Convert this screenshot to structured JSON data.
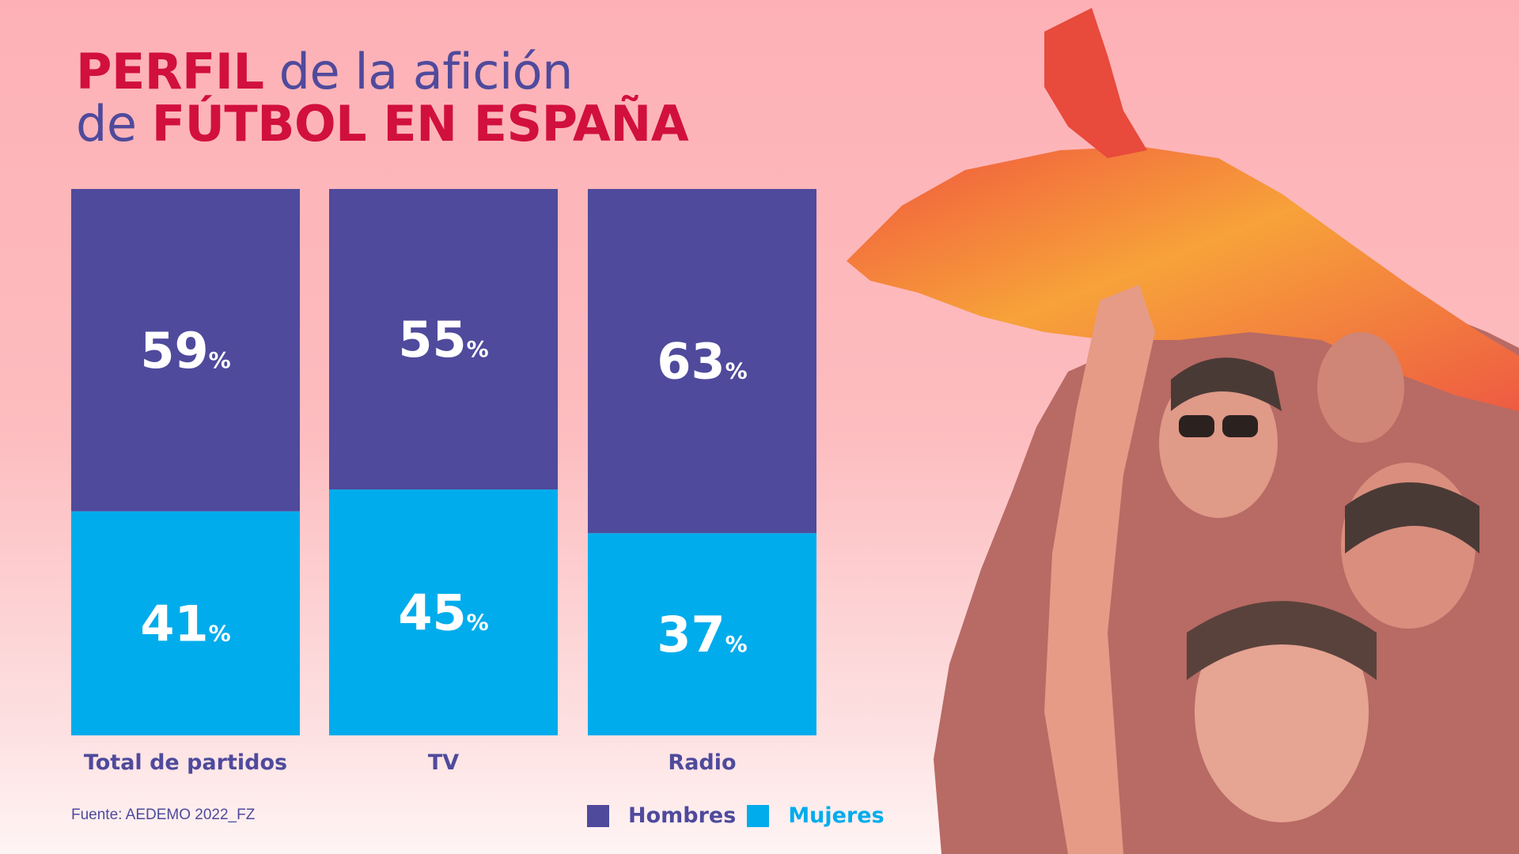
{
  "title": {
    "line1_strong": "PERFIL",
    "line1_rest": " de la afición",
    "line2_pre": "de ",
    "line2_strong": "FÚTBOL EN ESPAÑA"
  },
  "colors": {
    "hombres": "#4f4a9c",
    "mujeres": "#00acec",
    "title_accent": "#d1103f"
  },
  "chart_data": {
    "type": "bar",
    "stacked": true,
    "categories": [
      "Total de partidos",
      "TV",
      "Radio"
    ],
    "series": [
      {
        "name": "Hombres",
        "values": [
          59,
          55,
          63
        ],
        "labels": [
          "59",
          "55",
          "63"
        ]
      },
      {
        "name": "Mujeres",
        "values": [
          41,
          45,
          37
        ],
        "labels": [
          "41",
          "45",
          "37"
        ]
      }
    ],
    "unit": "%",
    "ylim": [
      0,
      100
    ],
    "grid": false,
    "legend": "bottom"
  },
  "legend": {
    "hombres": "Hombres",
    "mujeres": "Mujeres"
  },
  "source": "Fuente: AEDEMO 2022_FZ",
  "photo": {
    "icon": "football-fans-with-spain-flag-photo"
  }
}
